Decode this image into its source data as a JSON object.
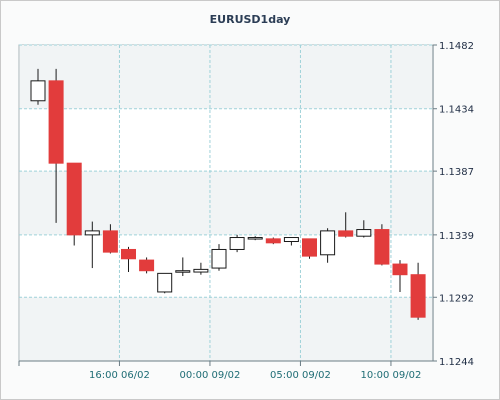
{
  "chart_data": {
    "type": "candlestick",
    "title": "EURUSD1day",
    "ylim": [
      1.1244,
      1.1482
    ],
    "yticks": [
      "1.1482",
      "1.1434",
      "1.1387",
      "1.1339",
      "1.1292",
      "1.1244"
    ],
    "ytick_values": [
      1.1482,
      1.1434,
      1.1387,
      1.1339,
      1.1292,
      1.1244
    ],
    "xtick_labels": [
      "16:00 06/02",
      "00:00 09/02",
      "05:00 09/02",
      "10:00 09/02"
    ],
    "xtick_after_candle": [
      4.5,
      9.5,
      14.5,
      19.5
    ],
    "up_color": "#ffffff",
    "down_color": "#e23c3c",
    "grid": true,
    "candles": [
      {
        "o": 1.144,
        "h": 1.1464,
        "l": 1.1437,
        "c": 1.1455
      },
      {
        "o": 1.1455,
        "h": 1.1464,
        "l": 1.1348,
        "c": 1.1393
      },
      {
        "o": 1.1393,
        "h": 1.1393,
        "l": 1.1331,
        "c": 1.1339
      },
      {
        "o": 1.1339,
        "h": 1.1349,
        "l": 1.1314,
        "c": 1.1342
      },
      {
        "o": 1.1342,
        "h": 1.1347,
        "l": 1.1325,
        "c": 1.1326
      },
      {
        "o": 1.1328,
        "h": 1.133,
        "l": 1.1311,
        "c": 1.1321
      },
      {
        "o": 1.132,
        "h": 1.1322,
        "l": 1.131,
        "c": 1.1312
      },
      {
        "o": 1.1296,
        "h": 1.1309,
        "l": 1.1295,
        "c": 1.131
      },
      {
        "o": 1.1311,
        "h": 1.1322,
        "l": 1.1308,
        "c": 1.1312
      },
      {
        "o": 1.1311,
        "h": 1.1318,
        "l": 1.1309,
        "c": 1.1313
      },
      {
        "o": 1.1314,
        "h": 1.1332,
        "l": 1.1312,
        "c": 1.1328
      },
      {
        "o": 1.1328,
        "h": 1.1339,
        "l": 1.1326,
        "c": 1.1337
      },
      {
        "o": 1.1337,
        "h": 1.1338,
        "l": 1.1335,
        "c": 1.1337
      },
      {
        "o": 1.1336,
        "h": 1.1337,
        "l": 1.1332,
        "c": 1.1333
      },
      {
        "o": 1.1334,
        "h": 1.1337,
        "l": 1.1331,
        "c": 1.1337
      },
      {
        "o": 1.1336,
        "h": 1.1336,
        "l": 1.1321,
        "c": 1.1323
      },
      {
        "o": 1.1324,
        "h": 1.1344,
        "l": 1.1318,
        "c": 1.1342
      },
      {
        "o": 1.1342,
        "h": 1.1356,
        "l": 1.1337,
        "c": 1.1338
      },
      {
        "o": 1.1338,
        "h": 1.135,
        "l": 1.1337,
        "c": 1.1343
      },
      {
        "o": 1.1343,
        "h": 1.1347,
        "l": 1.1316,
        "c": 1.1317
      },
      {
        "o": 1.1317,
        "h": 1.132,
        "l": 1.1296,
        "c": 1.1309
      },
      {
        "o": 1.1309,
        "h": 1.1318,
        "l": 1.1275,
        "c": 1.1277
      }
    ]
  }
}
